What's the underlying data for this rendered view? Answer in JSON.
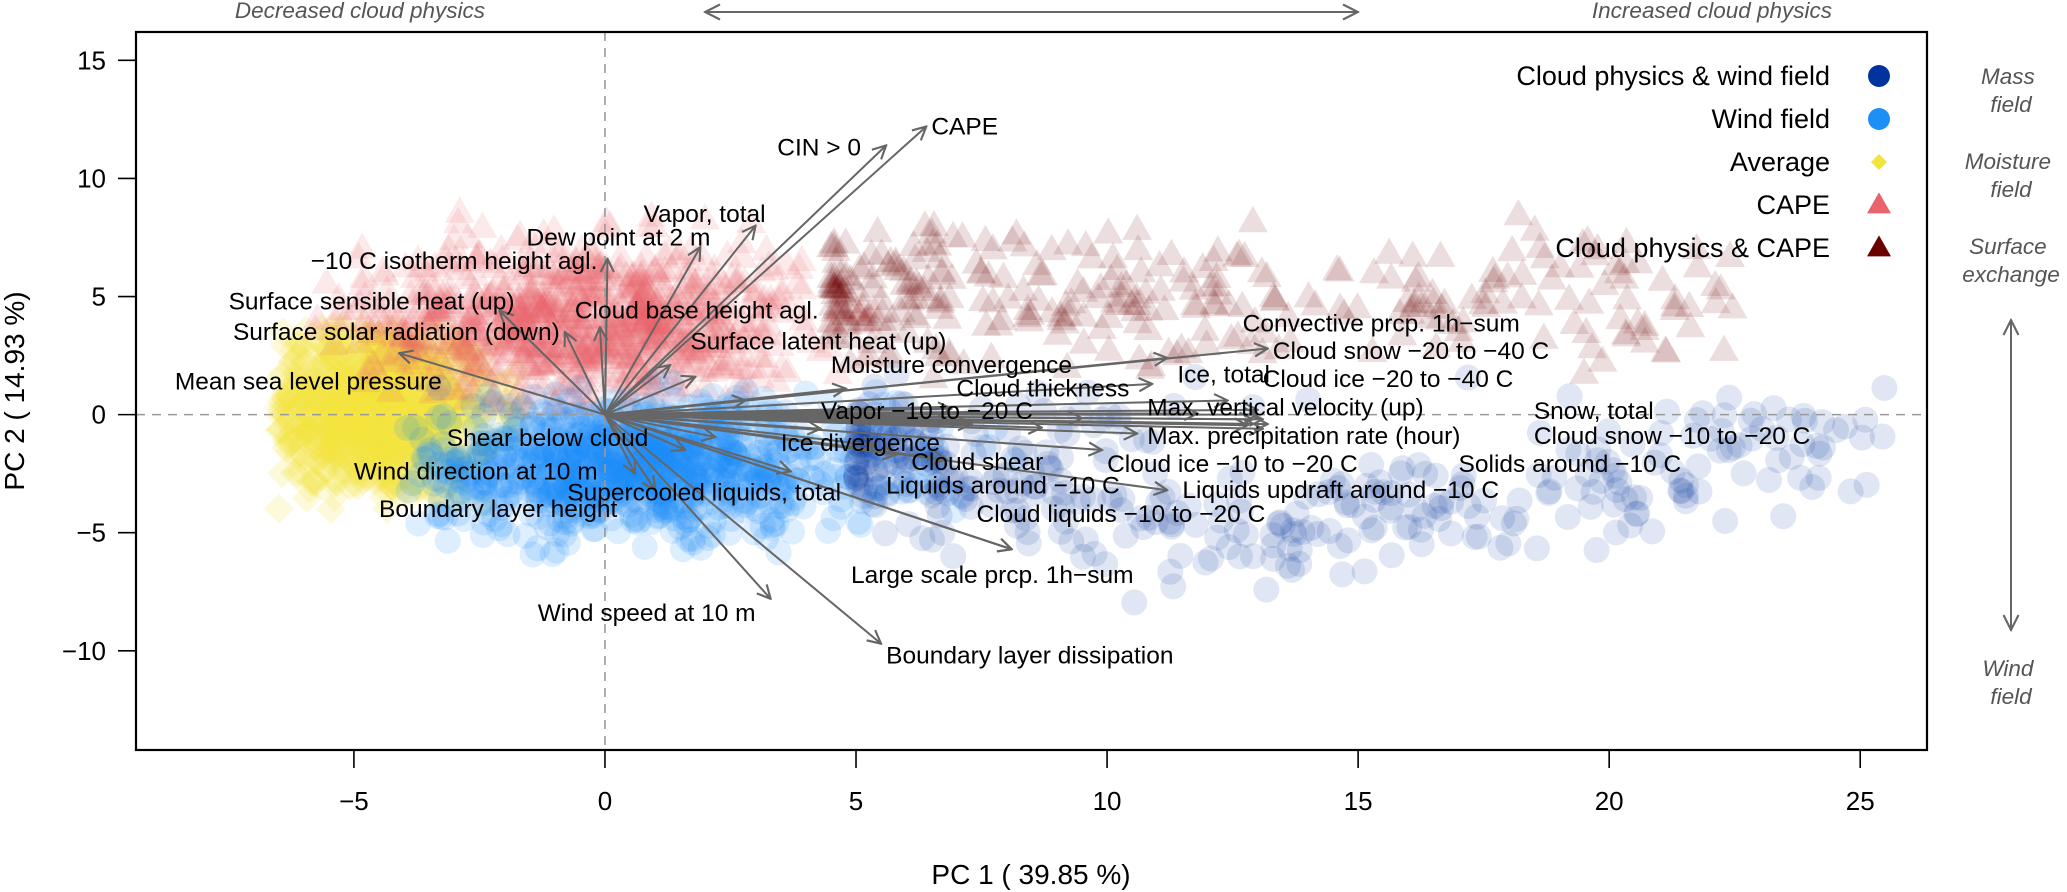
{
  "chart_data": {
    "type": "scatter",
    "subtype": "pca-biplot",
    "xlabel": "PC 1 ( 39.85 %)",
    "ylabel": "PC 2 ( 14.93 %)",
    "xlim": [
      -9.34,
      26.33
    ],
    "ylim": [
      -14.2,
      16.2
    ],
    "xticks": [
      -5,
      0,
      5,
      10,
      15,
      20,
      25
    ],
    "yticks": [
      -10,
      -5,
      0,
      5,
      10,
      15
    ],
    "xtick_labels": [
      "−5",
      "0",
      "5",
      "10",
      "15",
      "20",
      "25"
    ],
    "ytick_labels": [
      "−10",
      "−5",
      "0",
      "5",
      "10",
      "15"
    ],
    "reference_lines": {
      "x": 0,
      "y": 0,
      "style": "dashed"
    },
    "top_annotation": {
      "left": "Decreased cloud physics",
      "right": "Increased cloud physics",
      "arrow": "double-headed horizontal"
    },
    "side_annotation": {
      "labels": [
        "Mass\nfield",
        "Moisture\nfield",
        "Surface\nexchange",
        "Wind\nfield"
      ],
      "arrow": "double-headed vertical"
    },
    "legend": {
      "placement": "top-right",
      "entries": [
        {
          "label": "Cloud physics & wind field",
          "marker": "circle",
          "color": "#00339e"
        },
        {
          "label": "Wind field",
          "marker": "circle",
          "color": "#1e90f5"
        },
        {
          "label": "Average",
          "marker": "diamond",
          "color": "#f2e43e"
        },
        {
          "label": "CAPE",
          "marker": "triangle",
          "color": "#e8636c"
        },
        {
          "label": "Cloud physics & CAPE",
          "marker": "triangle",
          "color": "#6b0000"
        }
      ]
    },
    "point_groups": [
      {
        "name": "Average",
        "marker": "diamond",
        "color": "#f2e43e",
        "opacity": 0.18,
        "approx_center": [
          -4.6,
          0.2
        ],
        "approx_spread": [
          1.2,
          1.9
        ],
        "x_range": [
          -6.5,
          -1.5
        ],
        "y_range": [
          -4.2,
          3.8
        ],
        "approx_count": 900
      },
      {
        "name": "CAPE",
        "marker": "triangle",
        "color": "#e8636c",
        "opacity": 0.14,
        "approx_center": [
          -0.4,
          3.9
        ],
        "approx_spread": [
          2.2,
          1.7
        ],
        "x_range": [
          -6,
          5.5
        ],
        "y_range": [
          0.2,
          8.6
        ],
        "approx_count": 900
      },
      {
        "name": "Wind field",
        "marker": "circle",
        "color": "#1e90f5",
        "opacity": 0.15,
        "approx_center": [
          0.6,
          -2.2
        ],
        "approx_spread": [
          2.5,
          1.4
        ],
        "x_range": [
          -4,
          9
        ],
        "y_range": [
          -6,
          1.5
        ],
        "approx_count": 900
      },
      {
        "name": "Cloud physics & CAPE",
        "marker": "triangle",
        "color": "#6b0000",
        "opacity": 0.13,
        "approx_center": [
          9.5,
          5.0
        ],
        "approx_spread": [
          3.8,
          1.4
        ],
        "x_range": [
          4.5,
          22.5
        ],
        "y_range": [
          1.5,
          9
        ],
        "approx_count": 320
      },
      {
        "name": "Cloud physics & wind field",
        "marker": "circle",
        "color": "#00339e",
        "opacity": 0.12,
        "approx_center": [
          11.5,
          -4.8
        ],
        "approx_spread": [
          3.5,
          1.5
        ],
        "x_range": [
          5,
          25.5
        ],
        "y_range": [
          -10,
          2
        ],
        "approx_count": 380
      }
    ],
    "loadings": [
      {
        "label": "CAPE",
        "x": 6.4,
        "y": 12.2,
        "lx": 6.5,
        "ly": 12.2,
        "anchor": "start"
      },
      {
        "label": "CIN > 0",
        "x": 5.6,
        "y": 11.4,
        "lx": 5.1,
        "ly": 11.3,
        "anchor": "end"
      },
      {
        "label": "Vapor, total",
        "x": 3.0,
        "y": 8.0,
        "lx": 3.2,
        "ly": 8.5,
        "anchor": "end"
      },
      {
        "label": "Dew point at 2 m",
        "x": 1.9,
        "y": 7.1,
        "lx": 2.1,
        "ly": 7.5,
        "anchor": "end"
      },
      {
        "label": "−10 C isotherm height agl.",
        "x": 0.05,
        "y": 6.6,
        "lx": -0.15,
        "ly": 6.5,
        "anchor": "end"
      },
      {
        "label": "Cloud base height agl.",
        "x": -0.1,
        "y": 3.7,
        "lx": -0.6,
        "ly": 4.4,
        "anchor": "start"
      },
      {
        "label": "Surface sensible heat (up)",
        "x": -2.1,
        "y": 4.4,
        "lx": -1.8,
        "ly": 4.8,
        "anchor": "end"
      },
      {
        "label": "Surface solar radiation (down)",
        "x": -0.8,
        "y": 3.5,
        "lx": -0.9,
        "ly": 3.5,
        "anchor": "end"
      },
      {
        "label": "Mean sea level pressure",
        "x": -4.1,
        "y": 2.6,
        "lx": -3.25,
        "ly": 1.4,
        "anchor": "end"
      },
      {
        "label": "Surface latent heat (up)",
        "x": 1.3,
        "y": 2.1,
        "lx": 1.7,
        "ly": 3.1,
        "anchor": "start"
      },
      {
        "label": "Moisture convergence",
        "x": 4.8,
        "y": 1.1,
        "lx": 4.5,
        "ly": 2.1,
        "anchor": "start"
      },
      {
        "label": "Cloud thickness",
        "x": 10.9,
        "y": 1.3,
        "lx": 7.0,
        "ly": 1.1,
        "anchor": "start"
      },
      {
        "label": "Vapor −10 to −20 C",
        "x": 6.9,
        "y": 0.25,
        "lx": 4.3,
        "ly": 0.15,
        "anchor": "start"
      },
      {
        "label": "Convective prcp. 1h−sum",
        "x": 11.2,
        "y": 2.4,
        "lx": 12.7,
        "ly": 3.85,
        "anchor": "start"
      },
      {
        "label": "Cloud snow −20 to −40 C",
        "x": 13.2,
        "y": 2.8,
        "lx": 13.3,
        "ly": 2.7,
        "anchor": "start"
      },
      {
        "label": "Ice, total",
        "x": 12.4,
        "y": 0.6,
        "lx": 11.4,
        "ly": 1.7,
        "anchor": "start"
      },
      {
        "label": "Cloud ice −20 to −40 C",
        "x": 13.0,
        "y": 0.2,
        "lx": 13.1,
        "ly": 1.5,
        "anchor": "start"
      },
      {
        "label": "Max. vertical velocity (up)",
        "x": 13.1,
        "y": -0.2,
        "lx": 10.8,
        "ly": 0.3,
        "anchor": "start"
      },
      {
        "label": "Max. precipitation rate (hour)",
        "x": 10.6,
        "y": -0.8,
        "lx": 10.8,
        "ly": -0.9,
        "anchor": "start"
      },
      {
        "label": "Snow, total",
        "x": 13.2,
        "y": -0.4,
        "lx": 18.5,
        "ly": 0.15,
        "anchor": "start"
      },
      {
        "label": "Cloud snow −10 to −20 C",
        "x": 13.1,
        "y": -0.6,
        "lx": 18.5,
        "ly": -0.9,
        "anchor": "start"
      },
      {
        "label": "Solids around −10 C",
        "x": 12.8,
        "y": -0.45,
        "lx": 17.0,
        "ly": -2.1,
        "anchor": "start"
      },
      {
        "label": "Ice divergence",
        "x": 2.2,
        "y": -0.95,
        "lx": 3.5,
        "ly": -1.2,
        "anchor": "start"
      },
      {
        "label": "Cloud shear",
        "x": 5.8,
        "y": -1.7,
        "lx": 6.1,
        "ly": -2.0,
        "anchor": "start"
      },
      {
        "label": "Cloud ice −10 to −20 C",
        "x": 9.9,
        "y": -1.5,
        "lx": 10.0,
        "ly": -2.1,
        "anchor": "start"
      },
      {
        "label": "Liquids around −10 C",
        "x": 6.8,
        "y": -1.9,
        "lx": 5.6,
        "ly": -3.0,
        "anchor": "start"
      },
      {
        "label": "Liquids updraft around −10 C",
        "x": 11.2,
        "y": -3.2,
        "lx": 11.5,
        "ly": -3.2,
        "anchor": "start"
      },
      {
        "label": "Cloud liquids −10 to −20 C",
        "x": 8.1,
        "y": -5.7,
        "lx": 7.4,
        "ly": -4.2,
        "anchor": "start"
      },
      {
        "label": "Large scale prcp. 1h−sum",
        "x": 8.1,
        "y": -5.7,
        "lx": 4.9,
        "ly": -6.8,
        "anchor": "start"
      },
      {
        "label": "Supercooled liquids, total",
        "x": 3.7,
        "y": -2.4,
        "lx": -0.75,
        "ly": -3.3,
        "anchor": "start"
      },
      {
        "label": "Shear below cloud",
        "x": 0.6,
        "y": -2.5,
        "lx": -3.15,
        "ly": -1.0,
        "anchor": "start"
      },
      {
        "label": "Wind direction at 10 m",
        "x": 1.0,
        "y": -3.2,
        "lx": -5.0,
        "ly": -2.4,
        "anchor": "start"
      },
      {
        "label": "Boundary layer height",
        "x": 1.0,
        "y": -3.2,
        "lx": -4.5,
        "ly": -4.0,
        "anchor": "start"
      },
      {
        "label": "Wind speed at 10 m",
        "x": 3.3,
        "y": -7.8,
        "lx": 3.0,
        "ly": -8.4,
        "anchor": "end"
      },
      {
        "label": "Boundary layer dissipation",
        "x": 5.5,
        "y": -9.7,
        "lx": 5.6,
        "ly": -10.2,
        "anchor": "start"
      }
    ],
    "extra_loadings": [
      {
        "x": 13.0,
        "y": 0.0
      },
      {
        "x": 12.9,
        "y": -0.2
      },
      {
        "x": 11.8,
        "y": 0.05
      },
      {
        "x": 9.5,
        "y": -0.15
      },
      {
        "x": 8.7,
        "y": -0.55
      },
      {
        "x": 7.3,
        "y": -0.4
      },
      {
        "x": 4.3,
        "y": -0.6
      },
      {
        "x": 5.4,
        "y": -1.3
      },
      {
        "x": 1.6,
        "y": -1.5
      },
      {
        "x": 1.8,
        "y": 1.6
      },
      {
        "x": 2.8,
        "y": 0.6
      },
      {
        "x": 4.9,
        "y": 0.1
      }
    ]
  }
}
